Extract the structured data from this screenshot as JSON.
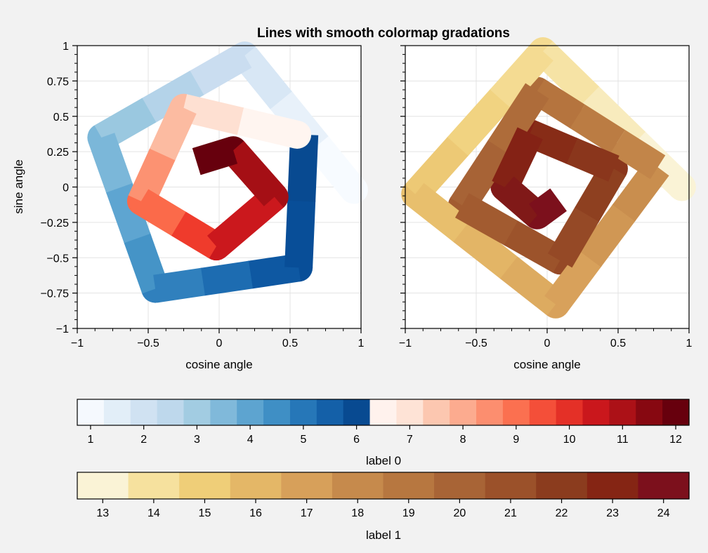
{
  "title": "Lines with smooth colormap gradations",
  "chart_data": [
    {
      "type": "line",
      "panel": "left",
      "xlabel": "cosine angle",
      "ylabel": "sine angle",
      "xlim": [
        -1,
        1
      ],
      "ylim": [
        -1,
        1
      ],
      "xticks": [
        "−1",
        "−0.5",
        "0",
        "0.5",
        "1"
      ],
      "yticks": [
        "−1",
        "−0.75",
        "−0.5",
        "−0.25",
        "0",
        "0.25",
        "0.5",
        "0.75",
        "1"
      ],
      "grid": true,
      "colorbar": "label 0",
      "series": [
        {
          "colormap": "Blues",
          "values_range": [
            1,
            6
          ],
          "points": [
            {
              "x": 0.95,
              "y": -0.02
            },
            {
              "x": 0.18,
              "y": 0.93
            },
            {
              "x": -0.83,
              "y": 0.35
            },
            {
              "x": -0.45,
              "y": -0.72
            },
            {
              "x": 0.56,
              "y": -0.57
            },
            {
              "x": 0.6,
              "y": 0.37
            }
          ]
        },
        {
          "colormap": "Reds",
          "values_range": [
            7,
            12
          ],
          "points": [
            {
              "x": 0.55,
              "y": 0.37
            },
            {
              "x": -0.25,
              "y": 0.56
            },
            {
              "x": -0.55,
              "y": -0.1
            },
            {
              "x": -0.02,
              "y": -0.42
            },
            {
              "x": 0.39,
              "y": -0.07
            },
            {
              "x": 0.1,
              "y": 0.26
            },
            {
              "x": -0.16,
              "y": 0.18
            }
          ]
        }
      ]
    },
    {
      "type": "line",
      "panel": "right",
      "xlabel": "cosine angle",
      "xlim": [
        -1,
        1
      ],
      "ylim": [
        -1,
        1
      ],
      "xticks": [
        "−1",
        "−0.5",
        "0",
        "0.5",
        "1"
      ],
      "grid": true,
      "colorbar": "label 1",
      "series": [
        {
          "colormap": "YlOrBr",
          "values_range": [
            13,
            24
          ],
          "points": [
            {
              "x": 0.95,
              "y": 0.0
            },
            {
              "x": -0.03,
              "y": 0.96
            },
            {
              "x": -0.93,
              "y": -0.05
            },
            {
              "x": 0.06,
              "y": -0.83
            },
            {
              "x": 0.78,
              "y": 0.14
            },
            {
              "x": -0.07,
              "y": 0.68
            },
            {
              "x": -0.6,
              "y": -0.13
            },
            {
              "x": 0.09,
              "y": -0.52
            },
            {
              "x": 0.47,
              "y": 0.13
            },
            {
              "x": -0.12,
              "y": 0.38
            },
            {
              "x": -0.3,
              "y": 0.0
            },
            {
              "x": -0.07,
              "y": -0.2
            },
            {
              "x": 0.08,
              "y": -0.09
            }
          ]
        }
      ]
    }
  ],
  "colorbar_top": {
    "label": "label 0",
    "ticks": [
      "1",
      "2",
      "3",
      "4",
      "5",
      "6",
      "7",
      "8",
      "9",
      "10",
      "11",
      "12"
    ],
    "colors": [
      "#f5f9fe",
      "#e2eef8",
      "#d0e2f2",
      "#bed8ec",
      "#a2cce2",
      "#80b9da",
      "#5da4d0",
      "#3f8fc5",
      "#2677b8",
      "#1460a8",
      "#084a91",
      "#fff2ed",
      "#fee3d6",
      "#fcc7b0",
      "#fcab8f",
      "#fc8e6f",
      "#fb7050",
      "#f44f39",
      "#e43027",
      "#ca171c",
      "#ac1117",
      "#870811",
      "#67000d"
    ]
  },
  "colorbar_bottom": {
    "label": "label 1",
    "ticks": [
      "13",
      "14",
      "15",
      "16",
      "17",
      "18",
      "19",
      "20",
      "21",
      "22",
      "23",
      "24"
    ],
    "colors": [
      "#faf3d6",
      "#f6e19e",
      "#efce78",
      "#e4b767",
      "#d7a05a",
      "#c68a4c",
      "#b77740",
      "#a86436",
      "#9b512a",
      "#8b3c1e",
      "#852514",
      "#7c101c"
    ]
  }
}
